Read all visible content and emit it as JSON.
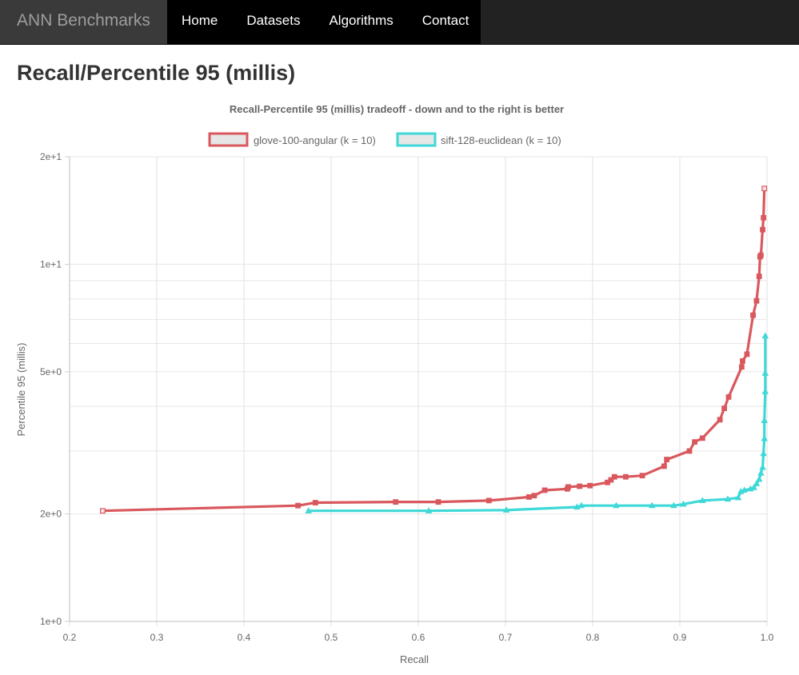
{
  "nav": {
    "brand": "ANN Benchmarks",
    "links": [
      "Home",
      "Datasets",
      "Algorithms",
      "Contact"
    ]
  },
  "page": {
    "title": "Recall/Percentile 95 (millis)"
  },
  "chart_data": {
    "type": "line",
    "title": "Recall-Percentile 95 (millis) tradeoff - down and to the right is better",
    "xlabel": "Recall",
    "ylabel": "Percentile 95 (millis)",
    "xlim": [
      0.2,
      1.0
    ],
    "ylim": [
      1,
      20
    ],
    "yscale": "log",
    "xticks": [
      "0.2",
      "0.3",
      "0.4",
      "0.5",
      "0.6",
      "0.7",
      "0.8",
      "0.9",
      "1.0"
    ],
    "yticks": [
      {
        "value": 1,
        "label": "1e+0"
      },
      {
        "value": 2,
        "label": "2e+0"
      },
      {
        "value": 5,
        "label": "5e+0"
      },
      {
        "value": 10,
        "label": "1e+1"
      },
      {
        "value": 20,
        "label": "2e+1"
      }
    ],
    "grid": true,
    "legend_position": "top",
    "series": [
      {
        "name": "glove-100-angular (k = 10)",
        "color": "#d9585d",
        "marker": "square",
        "points": [
          [
            0.238,
            2.04
          ],
          [
            0.462,
            2.11
          ],
          [
            0.482,
            2.15
          ],
          [
            0.574,
            2.16
          ],
          [
            0.623,
            2.16
          ],
          [
            0.681,
            2.18
          ],
          [
            0.727,
            2.23
          ],
          [
            0.733,
            2.25
          ],
          [
            0.745,
            2.33
          ],
          [
            0.771,
            2.35
          ],
          [
            0.772,
            2.38
          ],
          [
            0.785,
            2.39
          ],
          [
            0.797,
            2.4
          ],
          [
            0.817,
            2.45
          ],
          [
            0.821,
            2.49
          ],
          [
            0.825,
            2.54
          ],
          [
            0.838,
            2.54
          ],
          [
            0.857,
            2.56
          ],
          [
            0.882,
            2.72
          ],
          [
            0.885,
            2.84
          ],
          [
            0.911,
            3.0
          ],
          [
            0.917,
            3.18
          ],
          [
            0.926,
            3.26
          ],
          [
            0.946,
            3.67
          ],
          [
            0.951,
            3.95
          ],
          [
            0.956,
            4.25
          ],
          [
            0.971,
            5.16
          ],
          [
            0.972,
            5.36
          ],
          [
            0.977,
            5.6
          ],
          [
            0.984,
            7.2
          ],
          [
            0.988,
            7.9
          ],
          [
            0.991,
            9.25
          ],
          [
            0.992,
            10.5
          ],
          [
            0.993,
            10.6
          ],
          [
            0.995,
            12.5
          ],
          [
            0.996,
            13.5
          ],
          [
            0.997,
            16.3
          ]
        ]
      },
      {
        "name": "sift-128-euclidean (k = 10)",
        "color": "#3fd8d8",
        "marker": "triangle",
        "points": [
          [
            0.474,
            2.04
          ],
          [
            0.612,
            2.04
          ],
          [
            0.701,
            2.05
          ],
          [
            0.782,
            2.09
          ],
          [
            0.787,
            2.11
          ],
          [
            0.827,
            2.11
          ],
          [
            0.868,
            2.11
          ],
          [
            0.893,
            2.11
          ],
          [
            0.904,
            2.13
          ],
          [
            0.926,
            2.18
          ],
          [
            0.955,
            2.2
          ],
          [
            0.967,
            2.22
          ],
          [
            0.97,
            2.31
          ],
          [
            0.974,
            2.33
          ],
          [
            0.981,
            2.35
          ],
          [
            0.985,
            2.37
          ],
          [
            0.988,
            2.43
          ],
          [
            0.991,
            2.5
          ],
          [
            0.993,
            2.6
          ],
          [
            0.995,
            2.7
          ],
          [
            0.996,
            2.95
          ],
          [
            0.997,
            3.25
          ],
          [
            0.997,
            3.65
          ],
          [
            0.998,
            4.4
          ],
          [
            0.998,
            4.95
          ],
          [
            0.998,
            6.3
          ]
        ]
      }
    ]
  }
}
